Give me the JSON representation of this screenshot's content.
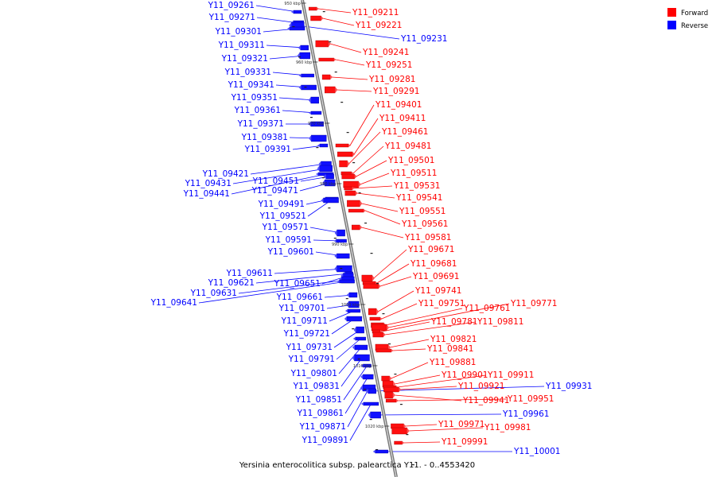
{
  "caption": "Yersinia enterocolitica subsp. palearctica Y11. - 0..4553420",
  "legend": [
    {
      "label": "Forward",
      "color": "#ff0000"
    },
    {
      "label": "Reverse",
      "color": "#0000ff"
    }
  ],
  "kbp_labels": [
    "950 kbp",
    "960 kbp",
    "970 kbp",
    "980 kbp",
    "990 kbp",
    "1000 kbp",
    "1010 kbp",
    "1020 kbp"
  ],
  "forward_genes": [
    "Y11_09211",
    "Y11_09221",
    "Y11_09241",
    "Y11_09251",
    "Y11_09281",
    "Y11_09291",
    "Y11_09401",
    "Y11_09411",
    "Y11_09461",
    "Y11_09481",
    "Y11_09501",
    "Y11_09511",
    "Y11_09531",
    "Y11_09541",
    "Y11_09551",
    "Y11_09561",
    "Y11_09581",
    "Y11_09671",
    "Y11_09681",
    "Y11_09691",
    "Y11_09741",
    "Y11_09751",
    "Y11_09761",
    "Y11_09771",
    "Y11_09781",
    "Y11_09811",
    "Y11_09821",
    "Y11_09841",
    "Y11_09881",
    "Y11_09901",
    "Y11_09911",
    "Y11_09921",
    "Y11_09941",
    "Y11_09951",
    "Y11_09971",
    "Y11_09981",
    "Y11_09991"
  ],
  "reverse_genes": [
    "Y11_09261",
    "Y11_09271",
    "Y11_09231",
    "Y11_09301",
    "Y11_09311",
    "Y11_09321",
    "Y11_09331",
    "Y11_09341",
    "Y11_09351",
    "Y11_09361",
    "Y11_09371",
    "Y11_09381",
    "Y11_09391",
    "Y11_09421",
    "Y11_09431",
    "Y11_09441",
    "Y11_09451",
    "Y11_09471",
    "Y11_09491",
    "Y11_09521",
    "Y11_09571",
    "Y11_09591",
    "Y11_09601",
    "Y11_09611",
    "Y11_09621",
    "Y11_09651",
    "Y11_09631",
    "Y11_09641",
    "Y11_09661",
    "Y11_09701",
    "Y11_09711",
    "Y11_09721",
    "Y11_09731",
    "Y11_09791",
    "Y11_09801",
    "Y11_09831",
    "Y11_09851",
    "Y11_09861",
    "Y11_09871",
    "Y11_09891",
    "Y11_09931",
    "Y11_09961",
    "Y11_10001"
  ]
}
